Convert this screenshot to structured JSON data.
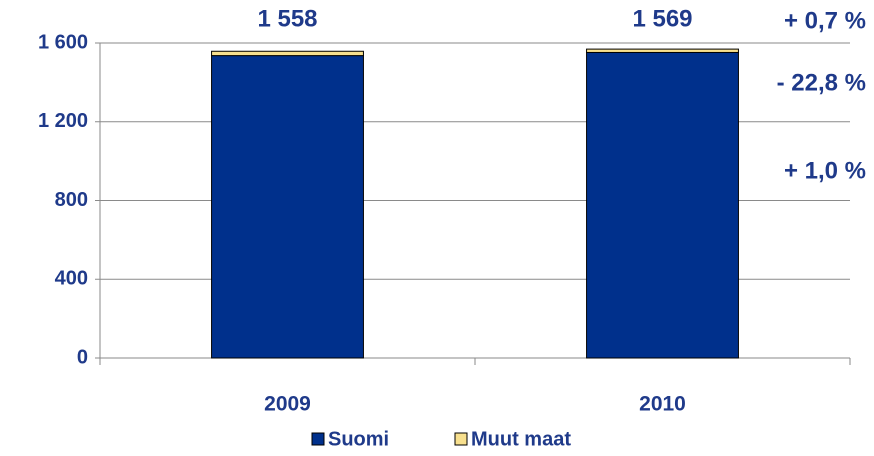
{
  "chart_data": {
    "type": "stacked_bar",
    "categories": [
      "2009",
      "2010"
    ],
    "series": [
      {
        "name": "Suomi",
        "color": "#00308c",
        "values": [
          1536,
          1552
        ]
      },
      {
        "name": "Muut maat",
        "color": "#f8e08e",
        "values": [
          22,
          17
        ]
      }
    ],
    "totals": [
      1558,
      1569
    ],
    "total_labels": [
      "1 558",
      "1 569"
    ],
    "annotations": [
      "+ 0,7 %",
      "- 22,8 %",
      "+ 1,0 %"
    ],
    "ylim": [
      0,
      1600
    ],
    "yticks": [
      0,
      400,
      800,
      {
        "value": 1200,
        "label": "1 200"
      },
      {
        "value": 1600,
        "label": "1 600"
      }
    ],
    "grid": true,
    "legend": "bottom"
  }
}
